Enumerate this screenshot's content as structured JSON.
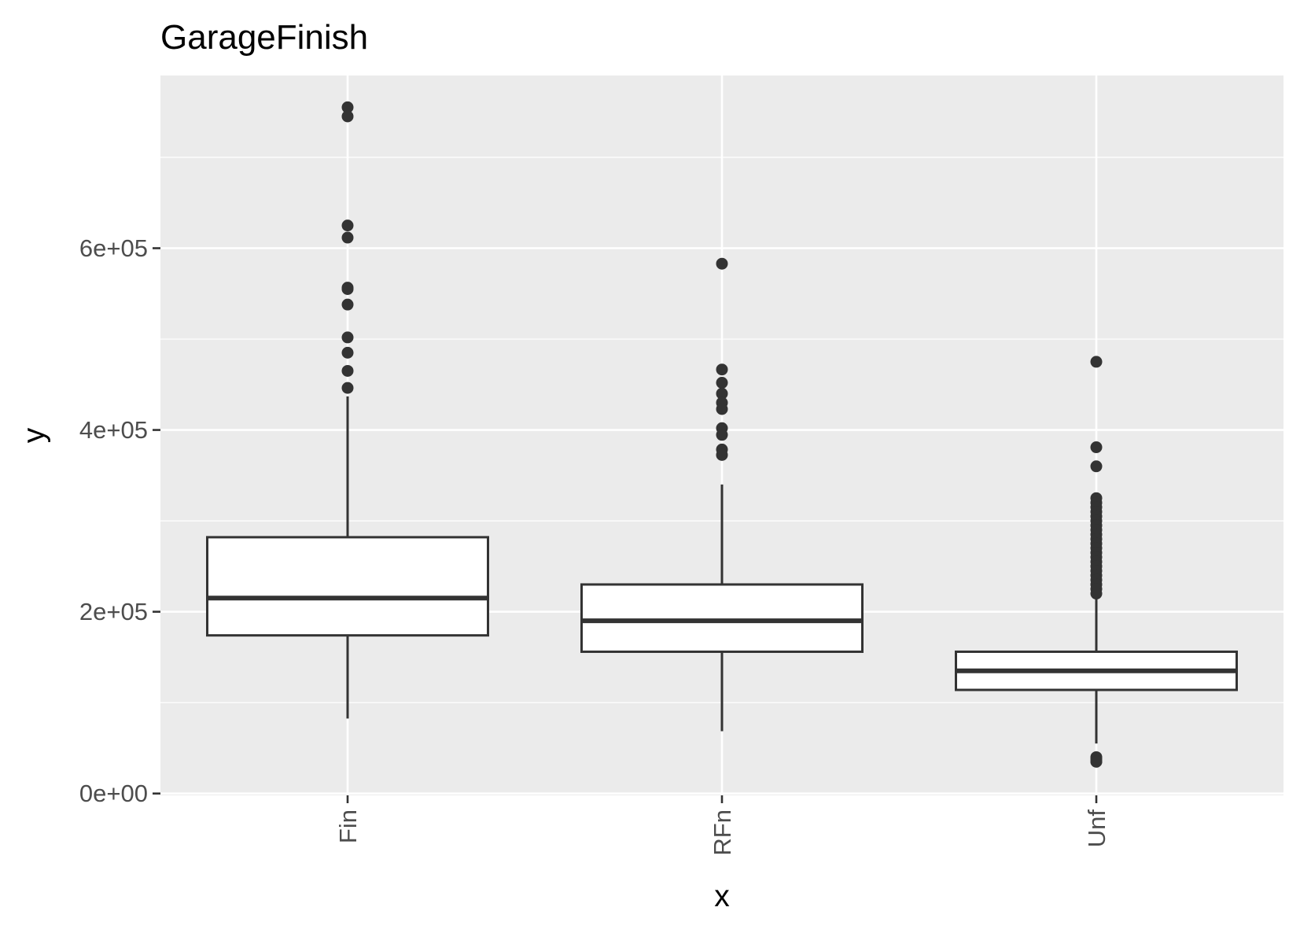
{
  "chart_data": {
    "type": "boxplot",
    "title": "GarageFinish",
    "xlabel": "x",
    "ylabel": "y",
    "categories": [
      "Fin",
      "RFn",
      "Unf"
    ],
    "y_ticks": [
      0,
      200000,
      400000,
      600000
    ],
    "y_tick_labels": [
      "0e+00",
      "2e+05",
      "4e+05",
      "6e+05"
    ],
    "ylim": [
      -2000,
      790000
    ],
    "grid": true,
    "legend": "none",
    "colors": {
      "panel_background": "#ebebeb",
      "gridline": "#ffffff",
      "box_fill": "#ffffff",
      "box_stroke": "#333333",
      "outlier": "#333333",
      "tick_text": "#4d4d4d",
      "title_text": "#000000"
    },
    "boxes": [
      {
        "category": "Fin",
        "whisker_low": 82500,
        "q1": 174000,
        "median": 215000,
        "q3": 282000,
        "whisker_high": 437000,
        "outliers": [
          755000,
          745000,
          625000,
          611657,
          556581,
          555000,
          538000,
          501837,
          485000,
          465000,
          446261
        ]
      },
      {
        "category": "RFn",
        "whisker_low": 68500,
        "q1": 156000,
        "median": 190000,
        "q3": 230000,
        "whisker_high": 340000,
        "outliers": [
          582933,
          466500,
          451950,
          440000,
          430000,
          423000,
          402000,
          394617,
          378500,
          372500
        ]
      },
      {
        "category": "Unf",
        "whisker_low": 55000,
        "q1": 114000,
        "median": 135000,
        "q3": 156000,
        "whisker_high": 215000,
        "outliers": [
          475000,
          381000,
          360000,
          325000,
          320000,
          315000,
          310000,
          305000,
          300000,
          295000,
          290000,
          285000,
          280000,
          275000,
          270000,
          265000,
          260000,
          255000,
          250000,
          245000,
          240000,
          235000,
          230000,
          225000,
          220000,
          40000,
          37900,
          35311,
          34900
        ]
      }
    ]
  }
}
